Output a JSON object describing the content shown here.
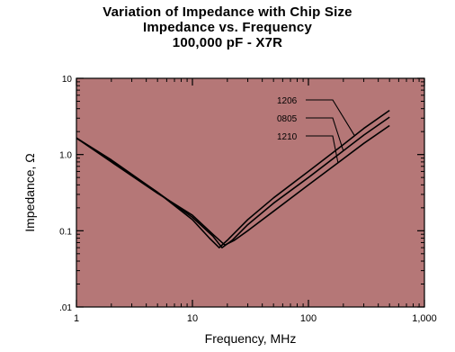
{
  "chart_data": {
    "type": "line",
    "title_lines": [
      "Variation of Impedance with Chip Size",
      "Impedance vs. Frequency",
      "100,000 pF - X7R"
    ],
    "xlabel": "Frequency, MHz",
    "ylabel": "Impedance, Ω",
    "x_scale": "log",
    "y_scale": "log",
    "xlim": [
      1,
      1000
    ],
    "ylim": [
      0.01,
      10
    ],
    "x_ticks": [
      1,
      10,
      100,
      1000
    ],
    "x_tick_labels": [
      "1",
      "10",
      "100",
      "1,000"
    ],
    "y_ticks": [
      0.01,
      0.1,
      1,
      10
    ],
    "y_tick_labels": [
      ".01",
      "0.1",
      "1.0",
      "10"
    ],
    "grid": false,
    "legend": "callout labels top-right",
    "colors": {
      "plot_background": "#b57777",
      "line": "#000000"
    },
    "series": [
      {
        "name": "1206",
        "x": [
          1,
          2,
          5,
          10,
          14,
          17,
          20,
          30,
          50,
          100,
          200,
          300,
          500
        ],
        "y": [
          1.65,
          0.85,
          0.32,
          0.14,
          0.08,
          0.06,
          0.075,
          0.14,
          0.27,
          0.6,
          1.35,
          2.2,
          3.8
        ]
      },
      {
        "name": "0805",
        "x": [
          1,
          2,
          5,
          10,
          15,
          18,
          22,
          30,
          50,
          100,
          200,
          300,
          500
        ],
        "y": [
          1.65,
          0.82,
          0.32,
          0.15,
          0.085,
          0.06,
          0.075,
          0.12,
          0.23,
          0.5,
          1.12,
          1.8,
          3.1
        ]
      },
      {
        "name": "1210",
        "x": [
          1,
          2,
          5,
          10,
          15,
          19,
          23,
          30,
          50,
          100,
          200,
          300,
          500
        ],
        "y": [
          1.65,
          0.8,
          0.31,
          0.16,
          0.09,
          0.065,
          0.075,
          0.1,
          0.18,
          0.4,
          0.88,
          1.4,
          2.4
        ]
      }
    ]
  }
}
